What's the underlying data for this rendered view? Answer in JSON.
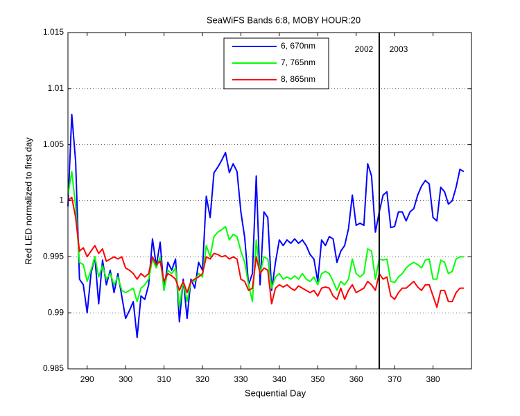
{
  "chart_data": {
    "type": "line",
    "title": "SeaWiFS Bands 6:8, MOBY HOUR:20",
    "xlabel": "Sequential Day",
    "ylabel": "Red LED normalized to first day",
    "x": [
      285,
      286,
      287,
      288,
      289,
      290,
      291,
      292,
      293,
      294,
      295,
      296,
      297,
      298,
      299,
      300,
      301,
      302,
      303,
      304,
      305,
      306,
      307,
      308,
      309,
      310,
      311,
      312,
      313,
      314,
      315,
      316,
      317,
      318,
      319,
      320,
      321,
      322,
      323,
      324,
      325,
      326,
      327,
      328,
      329,
      330,
      331,
      332,
      333,
      334,
      335,
      336,
      337,
      338,
      339,
      340,
      341,
      342,
      343,
      344,
      345,
      346,
      347,
      348,
      349,
      350,
      351,
      352,
      353,
      354,
      355,
      356,
      357,
      358,
      359,
      360,
      361,
      362,
      363,
      364,
      365,
      366,
      367,
      368,
      369,
      370,
      371,
      372,
      373,
      374,
      375,
      376,
      377,
      378,
      379,
      380,
      381,
      382,
      383,
      384,
      385,
      386,
      387,
      388
    ],
    "series": [
      {
        "name": "6, 670nm",
        "color": "#0000ff",
        "values": [
          0.9995,
          1.0077,
          1.0035,
          0.993,
          0.9925,
          0.99,
          0.9935,
          0.995,
          0.9908,
          0.9947,
          0.9925,
          0.9938,
          0.9918,
          0.9935,
          0.9915,
          0.9895,
          0.9902,
          0.991,
          0.9878,
          0.9915,
          0.9912,
          0.9925,
          0.9966,
          0.9942,
          0.9963,
          0.992,
          0.9945,
          0.9938,
          0.9948,
          0.9892,
          0.993,
          0.9895,
          0.993,
          0.9922,
          0.9945,
          0.9938,
          1.0004,
          0.9985,
          1.0025,
          1.003,
          1.0036,
          1.0043,
          1.0025,
          1.0033,
          1.0026,
          0.999,
          0.9967,
          0.9925,
          0.9935,
          1.0022,
          0.9925,
          0.999,
          0.9985,
          0.992,
          0.9945,
          0.9965,
          0.996,
          0.9965,
          0.9962,
          0.9966,
          0.9962,
          0.9965,
          0.996,
          0.9952,
          0.9948,
          0.9928,
          0.9965,
          0.996,
          0.9968,
          0.9966,
          0.9945,
          0.9955,
          0.996,
          0.9975,
          1.0005,
          0.9978,
          0.998,
          0.9978,
          1.0033,
          1.0022,
          0.9972,
          0.999,
          1.0005,
          1.0008,
          0.9976,
          0.9977,
          0.999,
          0.999,
          0.9982,
          0.999,
          0.9993,
          1.0005,
          1.0013,
          1.0018,
          1.0015,
          0.9985,
          0.9982,
          1.0012,
          1.0008,
          0.9997,
          1.0,
          1.0012,
          1.0028,
          1.0026
        ]
      },
      {
        "name": "7, 765nm",
        "color": "#00ff00",
        "values": [
          1.0005,
          1.0026,
          0.9995,
          0.9945,
          0.9943,
          0.9928,
          0.9938,
          0.995,
          0.9932,
          0.9942,
          0.993,
          0.9935,
          0.9925,
          0.9932,
          0.992,
          0.9918,
          0.992,
          0.9922,
          0.991,
          0.9922,
          0.9925,
          0.993,
          0.9948,
          0.994,
          0.995,
          0.992,
          0.9938,
          0.9935,
          0.994,
          0.9905,
          0.9928,
          0.991,
          0.9928,
          0.9928,
          0.9935,
          0.9932,
          0.996,
          0.995,
          0.9968,
          0.9972,
          0.9974,
          0.9977,
          0.9965,
          0.997,
          0.9968,
          0.9955,
          0.9945,
          0.9925,
          0.991,
          0.9965,
          0.9935,
          0.995,
          0.9948,
          0.9922,
          0.9932,
          0.9935,
          0.993,
          0.9932,
          0.993,
          0.9933,
          0.993,
          0.9935,
          0.993,
          0.9928,
          0.9932,
          0.9925,
          0.9935,
          0.9937,
          0.9935,
          0.9928,
          0.992,
          0.9928,
          0.9925,
          0.993,
          0.9948,
          0.9935,
          0.9932,
          0.9935,
          0.9957,
          0.9955,
          0.993,
          0.9948,
          0.9947,
          0.9948,
          0.9928,
          0.9927,
          0.9932,
          0.9935,
          0.994,
          0.9943,
          0.9945,
          0.9943,
          0.994,
          0.9947,
          0.9948,
          0.993,
          0.993,
          0.9947,
          0.9945,
          0.9935,
          0.9937,
          0.9948,
          0.995,
          0.995
        ]
      },
      {
        "name": "8, 865nm",
        "color": "#ff0000",
        "values": [
          1.0,
          1.0003,
          0.9985,
          0.9955,
          0.9958,
          0.995,
          0.9955,
          0.996,
          0.9953,
          0.9957,
          0.9946,
          0.9948,
          0.995,
          0.9948,
          0.995,
          0.994,
          0.9938,
          0.9935,
          0.993,
          0.9935,
          0.9932,
          0.9935,
          0.995,
          0.9943,
          0.9946,
          0.9928,
          0.9935,
          0.9933,
          0.993,
          0.992,
          0.9928,
          0.9918,
          0.9928,
          0.993,
          0.9932,
          0.9935,
          0.995,
          0.9948,
          0.9953,
          0.9952,
          0.995,
          0.9951,
          0.9948,
          0.995,
          0.9948,
          0.993,
          0.9928,
          0.992,
          0.9922,
          0.995,
          0.9935,
          0.994,
          0.9938,
          0.9908,
          0.9922,
          0.9925,
          0.9923,
          0.9925,
          0.9922,
          0.992,
          0.9924,
          0.9922,
          0.992,
          0.9918,
          0.992,
          0.9915,
          0.9922,
          0.9923,
          0.9922,
          0.9915,
          0.9912,
          0.9922,
          0.9912,
          0.992,
          0.9925,
          0.9918,
          0.992,
          0.9922,
          0.9928,
          0.9925,
          0.992,
          0.9935,
          0.993,
          0.9932,
          0.9915,
          0.9912,
          0.9918,
          0.9922,
          0.9922,
          0.9925,
          0.9928,
          0.9923,
          0.992,
          0.9925,
          0.9925,
          0.9915,
          0.9905,
          0.992,
          0.992,
          0.991,
          0.991,
          0.9918,
          0.9922,
          0.9922
        ]
      }
    ],
    "xlim": [
      285,
      390
    ],
    "ylim": [
      0.985,
      1.015
    ],
    "xticks": [
      290,
      300,
      310,
      320,
      330,
      340,
      350,
      360,
      370,
      380
    ],
    "yticks": [
      0.985,
      0.99,
      0.995,
      1,
      1.005,
      1.01,
      1.015
    ],
    "grid": "y",
    "legend": "top",
    "vline_x": 366,
    "annotations": [
      "2002",
      "2003"
    ]
  }
}
